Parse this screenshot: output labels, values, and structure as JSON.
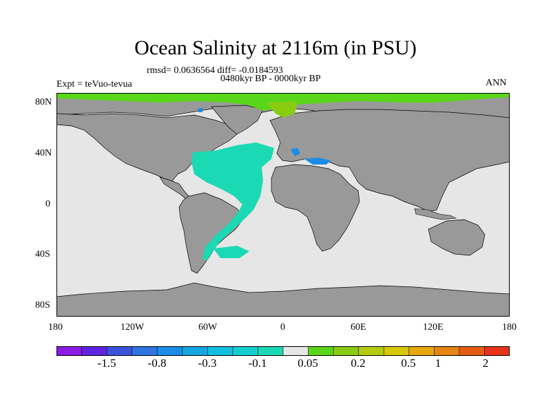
{
  "map": {
    "title": "Ocean Salinity at 2116m (in PSU)",
    "stats": "rmsd= 0.0636564 diff= -0.0184593",
    "period": "0480kyr BP - 0000kyr BP",
    "experiment": "Expt = teVuo-tevua",
    "season": "ANN",
    "lat_labels": [
      "80N",
      "40N",
      "0",
      "40S",
      "80S"
    ],
    "lon_labels": [
      "180",
      "120W",
      "60W",
      "0",
      "60E",
      "120E",
      "180"
    ],
    "colors": {
      "land": "#999999",
      "ocean_neutral": "#e6e6e6",
      "negative_small": "#1ad9b4",
      "negative_mid": "#1a8ce6",
      "positive_small": "#5ad61a",
      "positive_mid": "#88cc10"
    }
  },
  "colorbar": {
    "colors": [
      "#8c1ae6",
      "#5e24e0",
      "#3c54dc",
      "#2f74e0",
      "#1a8ce6",
      "#14a6e0",
      "#12bfdf",
      "#16cdd0",
      "#1ad9b4",
      "#e6e6e6",
      "#5ad61a",
      "#88cc10",
      "#b4cc10",
      "#d7c80a",
      "#e6a80c",
      "#e68414",
      "#e65c14",
      "#e6341a"
    ],
    "labels": [
      "-1.5",
      "-0.8",
      "-0.3",
      "-0.1",
      "0.05",
      "0.2",
      "0.5",
      "1",
      "2"
    ]
  }
}
